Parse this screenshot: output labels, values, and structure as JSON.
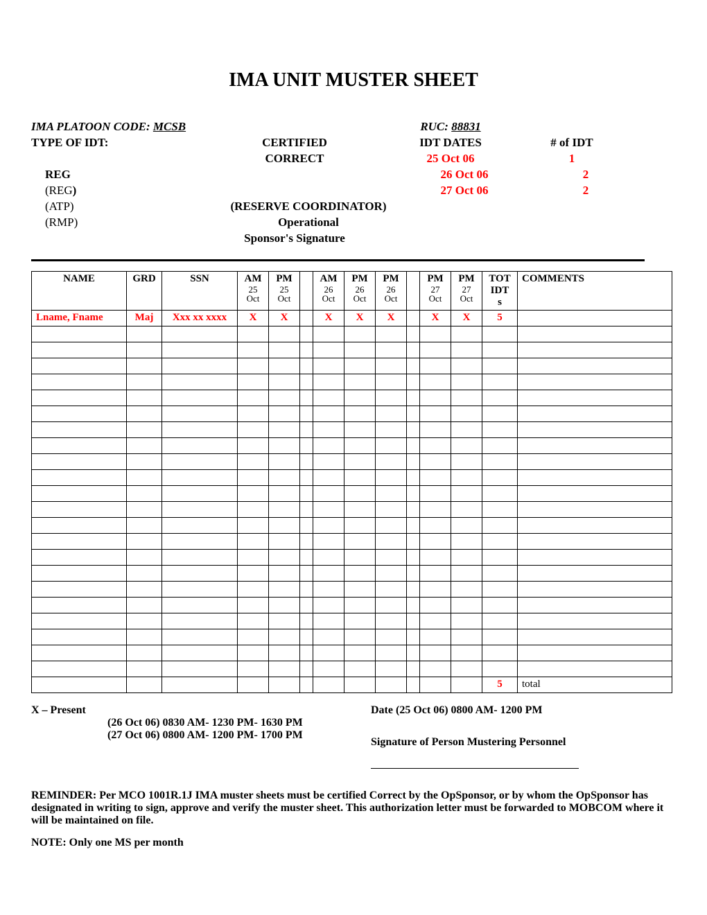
{
  "title": "IMA UNIT MUSTER SHEET",
  "header": {
    "platoon_label": "IMA PLATOON CODE: ",
    "platoon_code": "MCSB",
    "ruc_label": "RUC: ",
    "ruc": "88831",
    "type_label": "TYPE OF IDT:",
    "certified": "CERTIFIED",
    "correct": "CORRECT",
    "idt_dates_label": "IDT DATES",
    "num_idt_label": "# of  IDT",
    "dates": [
      {
        "date": "25 Oct 06",
        "count": "1"
      },
      {
        "date": "26 Oct 06",
        "count": "2"
      },
      {
        "date": "27 Oct 06",
        "count": "2"
      }
    ],
    "reg": "REG",
    "reg_paren": "(REG)",
    "atp": "(ATP)",
    "rmp": "(RMP)",
    "reserve_coord": "(RESERVE COORDINATOR)",
    "operational": "Operational",
    "sponsor_sig": "Sponsor's Signature"
  },
  "table": {
    "columns": {
      "name": "NAME",
      "grd": "GRD",
      "ssn": "SSN",
      "am": "AM",
      "pm": "PM",
      "d25": "25",
      "d26": "26",
      "d27": "27",
      "oct": "Oct",
      "tot": "TOT",
      "idt": "IDT",
      "s": "s",
      "comments": "COMMENTS"
    },
    "data_row": {
      "name": "Lname, Fname",
      "grd": "Maj",
      "ssn": "Xxx xx xxxx",
      "marks": [
        "X",
        "X",
        "X",
        "X",
        "X",
        "X",
        "X"
      ],
      "tot": "5"
    },
    "total_row": {
      "tot": "5",
      "label": "total"
    },
    "empty_rows": 22
  },
  "footer": {
    "x_present": "X – Present",
    "date_line": "Date (25 Oct 06)  0800 AM- 1200 PM",
    "line2": "(26 Oct 06)  0830 AM- 1230 PM- 1630 PM",
    "line3": "(27 Oct 06)  0800 AM- 1200 PM- 1700 PM",
    "sig_label": "Signature of Person Mustering Personnel",
    "reminder": "REMINDER:  Per MCO 1001R.1J IMA muster sheets must be certified Correct by the OpSponsor, or by whom the OpSponsor has designated in writing to sign, approve and verify the muster sheet. This authorization letter must be forwarded to MOBCOM where it will be maintained on file.",
    "note": "NOTE:  Only one MS per month"
  }
}
